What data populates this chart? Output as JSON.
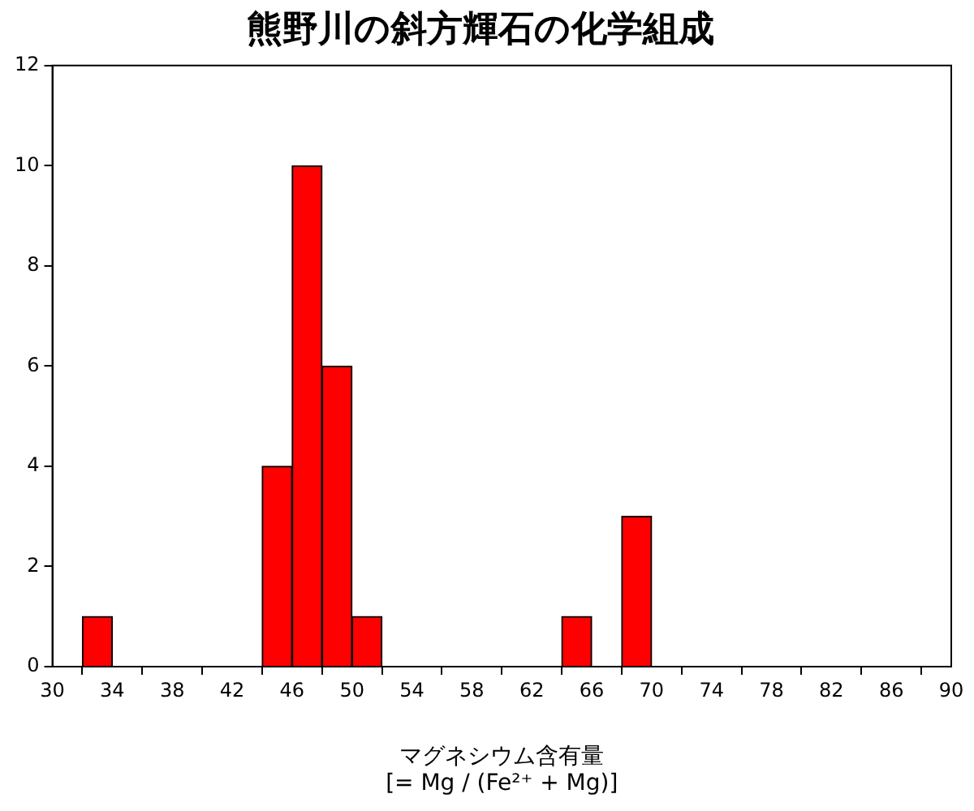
{
  "chart_data": {
    "type": "histogram",
    "title": "熊野川の斜方輝石の化学組成",
    "xlabel": "マグネシウム含有量\n[= Mg / (Fe²⁺ + Mg)]",
    "bins": [
      32,
      34,
      36,
      38,
      40,
      42,
      44,
      46,
      48,
      50,
      52,
      54,
      56,
      58,
      60,
      62,
      64,
      66,
      68,
      70
    ],
    "values": [
      1,
      0,
      0,
      0,
      0,
      0,
      4,
      10,
      6,
      1,
      0,
      0,
      0,
      0,
      0,
      0,
      1,
      0,
      3
    ],
    "color": "#ff0000",
    "xlim": [
      30,
      90
    ],
    "xticks": [
      30,
      34,
      38,
      42,
      46,
      50,
      54,
      58,
      62,
      66,
      70,
      74,
      78,
      82,
      86,
      90
    ],
    "ylim": [
      0,
      12
    ],
    "yticks": [
      0,
      2,
      4,
      6,
      8,
      10,
      12
    ],
    "grid": false,
    "legend": false
  }
}
